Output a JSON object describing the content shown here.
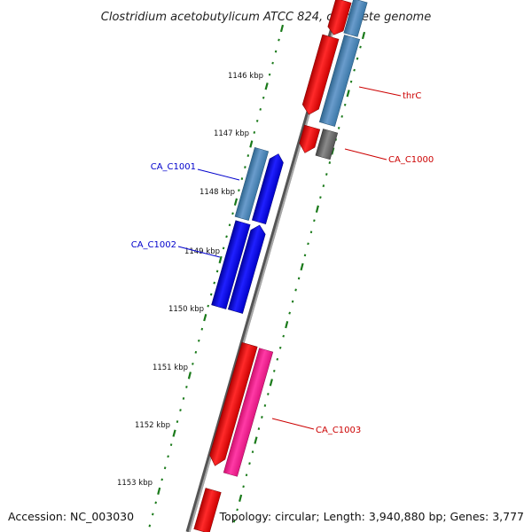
{
  "title": "Clostridium acetobutylicum ATCC 824, complete genome",
  "accession": "Accession: NC_003030",
  "summary": "Topology: circular; Length: 3,940,880 bp; Genes: 3,777",
  "scale": {
    "labels": [
      "1146 kbp",
      "1147 kbp",
      "1148 kbp",
      "1149 kbp",
      "1150 kbp",
      "1151 kbp",
      "1152 kbp",
      "1153 kbp"
    ],
    "tick_color": "#1a7a1a"
  },
  "genes": [
    {
      "name": "thrC",
      "color": "#cc0000"
    },
    {
      "name": "CA_C1000",
      "color": "#cc0000"
    },
    {
      "name": "CA_C1001",
      "color": "#0000cc"
    },
    {
      "name": "CA_C1002",
      "color": "#0000cc"
    },
    {
      "name": "CA_C1003",
      "color": "#cc0000"
    }
  ],
  "colors": {
    "backbone": "#8a8a8a",
    "forward_cds": "#ff0000",
    "reverse_cds": "#0000ff",
    "steelblue": "#4682b4",
    "pink": "#ff1493",
    "grey": "#666666"
  }
}
